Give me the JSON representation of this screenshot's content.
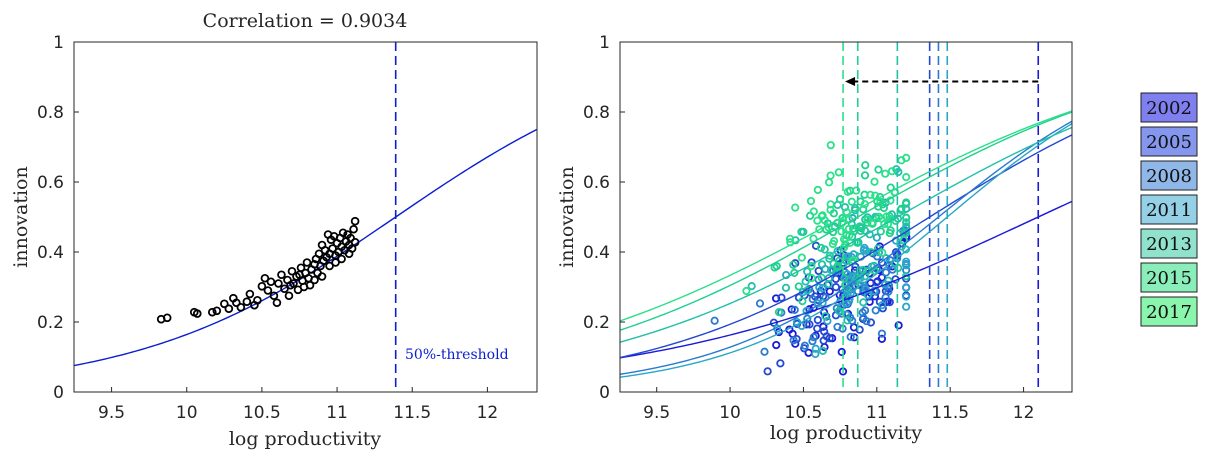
{
  "chart_data": [
    {
      "type": "scatter",
      "title": "Correlation = 0.9034",
      "xlabel": "log productivity",
      "ylabel": "innovation",
      "xlim": [
        9.25,
        12.33
      ],
      "ylim": [
        0,
        1
      ],
      "xticks": [
        9.5,
        10,
        10.5,
        11,
        11.5,
        12
      ],
      "xtick_labels": [
        "9.5",
        "10",
        "10.5",
        "11",
        "11.5",
        "12"
      ],
      "yticks": [
        0,
        0.2,
        0.4,
        0.6,
        0.8,
        1
      ],
      "ytick_labels": [
        "0",
        "0.2",
        "0.4",
        "0.6",
        "0.8",
        "1"
      ],
      "fit_curve": {
        "type": "logistic",
        "midpoint": 11.39,
        "slope": 1.17,
        "color": "#0a1ed2"
      },
      "threshold": {
        "x": 11.39,
        "label": "50%-threshold",
        "color": "#0a1ed2"
      },
      "points_color": "#000000",
      "points": [
        [
          9.83,
          0.208
        ],
        [
          9.87,
          0.212
        ],
        [
          10.05,
          0.228
        ],
        [
          10.07,
          0.224
        ],
        [
          10.17,
          0.228
        ],
        [
          10.2,
          0.232
        ],
        [
          10.25,
          0.252
        ],
        [
          10.28,
          0.238
        ],
        [
          10.31,
          0.268
        ],
        [
          10.33,
          0.255
        ],
        [
          10.36,
          0.242
        ],
        [
          10.4,
          0.258
        ],
        [
          10.42,
          0.28
        ],
        [
          10.45,
          0.248
        ],
        [
          10.47,
          0.262
        ],
        [
          10.5,
          0.302
        ],
        [
          10.52,
          0.325
        ],
        [
          10.54,
          0.29
        ],
        [
          10.56,
          0.315
        ],
        [
          10.58,
          0.275
        ],
        [
          10.6,
          0.255
        ],
        [
          10.61,
          0.31
        ],
        [
          10.63,
          0.335
        ],
        [
          10.65,
          0.295
        ],
        [
          10.67,
          0.32
        ],
        [
          10.68,
          0.275
        ],
        [
          10.7,
          0.345
        ],
        [
          10.71,
          0.31
        ],
        [
          10.73,
          0.33
        ],
        [
          10.74,
          0.292
        ],
        [
          10.76,
          0.355
        ],
        [
          10.77,
          0.318
        ],
        [
          10.79,
          0.34
        ],
        [
          10.8,
          0.37
        ],
        [
          10.81,
          0.325
        ],
        [
          10.82,
          0.305
        ],
        [
          10.83,
          0.35
        ],
        [
          10.85,
          0.365
        ],
        [
          10.86,
          0.38
        ],
        [
          10.87,
          0.34
        ],
        [
          10.88,
          0.395
        ],
        [
          10.89,
          0.36
        ],
        [
          10.9,
          0.42
        ],
        [
          10.91,
          0.375
        ],
        [
          10.92,
          0.405
        ],
        [
          10.93,
          0.385
        ],
        [
          10.94,
          0.45
        ],
        [
          10.95,
          0.395
        ],
        [
          10.96,
          0.435
        ],
        [
          10.97,
          0.41
        ],
        [
          10.98,
          0.445
        ],
        [
          10.99,
          0.39
        ],
        [
          11.0,
          0.425
        ],
        [
          11.01,
          0.4
        ],
        [
          11.02,
          0.44
        ],
        [
          11.03,
          0.415
        ],
        [
          11.04,
          0.455
        ],
        [
          11.05,
          0.405
        ],
        [
          11.06,
          0.43
        ],
        [
          11.07,
          0.45
        ],
        [
          11.08,
          0.42
        ],
        [
          11.09,
          0.44
        ],
        [
          11.1,
          0.41
        ],
        [
          11.11,
          0.465
        ],
        [
          11.12,
          0.488
        ],
        [
          11.12,
          0.428
        ],
        [
          10.95,
          0.36
        ],
        [
          10.9,
          0.33
        ],
        [
          10.85,
          0.32
        ],
        [
          10.78,
          0.3
        ],
        [
          11.03,
          0.38
        ],
        [
          11.08,
          0.395
        ],
        [
          10.99,
          0.37
        ],
        [
          10.75,
          0.335
        ],
        [
          10.69,
          0.305
        ]
      ]
    },
    {
      "type": "scatter",
      "xlabel": "log productivity",
      "ylabel": "innovation",
      "xlim": [
        9.25,
        12.33
      ],
      "ylim": [
        0,
        1
      ],
      "xticks": [
        9.5,
        10,
        10.5,
        11,
        11.5,
        12
      ],
      "xtick_labels": [
        "9.5",
        "10",
        "10.5",
        "11",
        "11.5",
        "12"
      ],
      "yticks": [
        0,
        0.2,
        0.4,
        0.6,
        0.8,
        1
      ],
      "ytick_labels": [
        "0",
        "0.2",
        "0.4",
        "0.6",
        "0.8",
        "1"
      ],
      "legend_position": "right, outside",
      "arrow": {
        "from_x": 12.1,
        "to_x": 10.77,
        "y": 0.887,
        "color": "#000000"
      },
      "series": [
        {
          "name": "2002",
          "color": "#1a1ad8",
          "fit": {
            "midpoint": 12.1,
            "slope": 0.78
          },
          "threshold_x": 12.1,
          "center": [
            10.85,
            0.27
          ]
        },
        {
          "name": "2005",
          "color": "#2348d2",
          "fit": {
            "midpoint": 11.36,
            "slope": 1.05
          },
          "threshold_x": 11.36,
          "center": [
            10.75,
            0.26
          ]
        },
        {
          "name": "2008",
          "color": "#2a7ad0",
          "fit": {
            "midpoint": 11.42,
            "slope": 1.35
          },
          "threshold_x": 11.42,
          "center": [
            10.8,
            0.28
          ]
        },
        {
          "name": "2011",
          "color": "#2aa6c8",
          "fit": {
            "midpoint": 11.48,
            "slope": 1.4
          },
          "threshold_x": 11.48,
          "center": [
            10.85,
            0.33
          ]
        },
        {
          "name": "2013",
          "color": "#22c0a8",
          "fit": {
            "midpoint": 11.14,
            "slope": 0.95
          },
          "threshold_x": 11.14,
          "center": [
            10.9,
            0.42
          ]
        },
        {
          "name": "2015",
          "color": "#1fd08e",
          "fit": {
            "midpoint": 10.87,
            "slope": 0.95
          },
          "threshold_x": 10.87,
          "center": [
            10.85,
            0.46
          ]
        },
        {
          "name": "2017",
          "color": "#2ae08a",
          "fit": {
            "midpoint": 10.77,
            "slope": 0.9
          },
          "threshold_x": 10.77,
          "center": [
            10.8,
            0.48
          ]
        }
      ]
    }
  ],
  "legend": {
    "items": [
      {
        "label": "2002",
        "color": "#7f7ff0"
      },
      {
        "label": "2005",
        "color": "#8596ee"
      },
      {
        "label": "2008",
        "color": "#8fb7e8"
      },
      {
        "label": "2011",
        "color": "#94d0e6"
      },
      {
        "label": "2013",
        "color": "#90e2cd"
      },
      {
        "label": "2015",
        "color": "#8aeebb"
      },
      {
        "label": "2017",
        "color": "#8af5ad"
      }
    ]
  }
}
